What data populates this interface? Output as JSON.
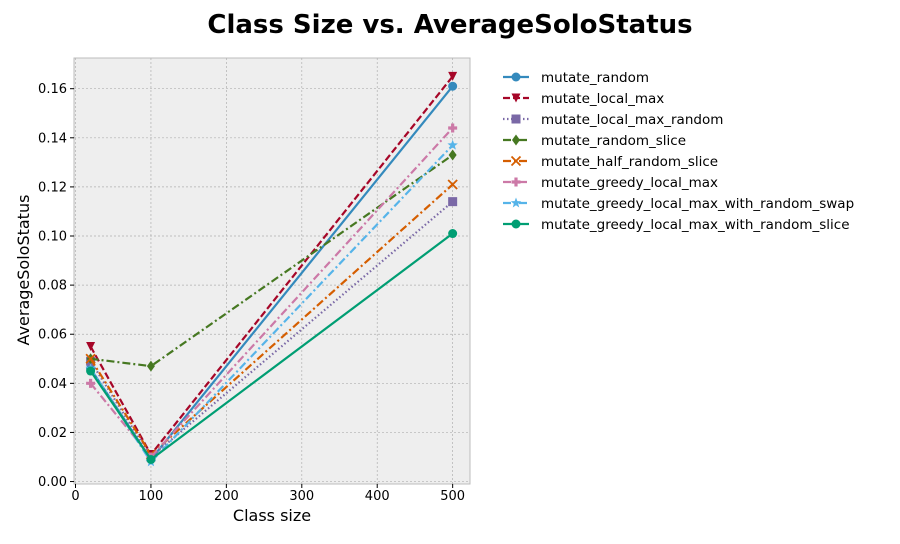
{
  "chart_data": {
    "type": "line",
    "title": "Class Size vs. AverageSoloStatus",
    "xlabel": "Class size",
    "ylabel": "AverageSoloStatus",
    "xlim": [
      -2,
      523
    ],
    "ylim": [
      -0.001,
      0.1725
    ],
    "x_ticks": [
      0,
      100,
      200,
      300,
      400,
      500
    ],
    "x_tick_labels": [
      "0",
      "100",
      "200",
      "300",
      "400",
      "500"
    ],
    "y_ticks": [
      0.0,
      0.02,
      0.04,
      0.06,
      0.08,
      0.1,
      0.12,
      0.14,
      0.16
    ],
    "y_tick_labels": [
      "0.00",
      "0.02",
      "0.04",
      "0.06",
      "0.08",
      "0.10",
      "0.12",
      "0.14",
      "0.16"
    ],
    "grid": true,
    "legend_position": "outside-right",
    "x": [
      20,
      100,
      500
    ],
    "series": [
      {
        "name": "mutate_random",
        "values": [
          0.046,
          0.009,
          0.161
        ],
        "color": "#348ABD",
        "dash": "solid",
        "marker": "circle"
      },
      {
        "name": "mutate_local_max",
        "values": [
          0.055,
          0.011,
          0.165
        ],
        "color": "#A60628",
        "dash": "dashed",
        "marker": "triangle-down"
      },
      {
        "name": "mutate_local_max_random",
        "values": [
          0.049,
          0.01,
          0.114
        ],
        "color": "#7A68A6",
        "dash": "dotted",
        "marker": "square"
      },
      {
        "name": "mutate_random_slice",
        "values": [
          0.05,
          0.047,
          0.133
        ],
        "color": "#467821",
        "dash": "dashdot",
        "marker": "diamond"
      },
      {
        "name": "mutate_half_random_slice",
        "values": [
          0.05,
          0.011,
          0.121
        ],
        "color": "#D55E00",
        "dash": "dashdot",
        "marker": "x"
      },
      {
        "name": "mutate_greedy_local_max",
        "values": [
          0.04,
          0.01,
          0.144
        ],
        "color": "#CC79A7",
        "dash": "dashdot",
        "marker": "plus"
      },
      {
        "name": "mutate_greedy_local_max_with_random_swap",
        "values": [
          0.046,
          0.008,
          0.137
        ],
        "color": "#56B4E9",
        "dash": "dashdot",
        "marker": "star"
      },
      {
        "name": "mutate_greedy_local_max_with_random_slice",
        "values": [
          0.045,
          0.009,
          0.101
        ],
        "color": "#009E73",
        "dash": "solid",
        "marker": "circle"
      }
    ]
  }
}
